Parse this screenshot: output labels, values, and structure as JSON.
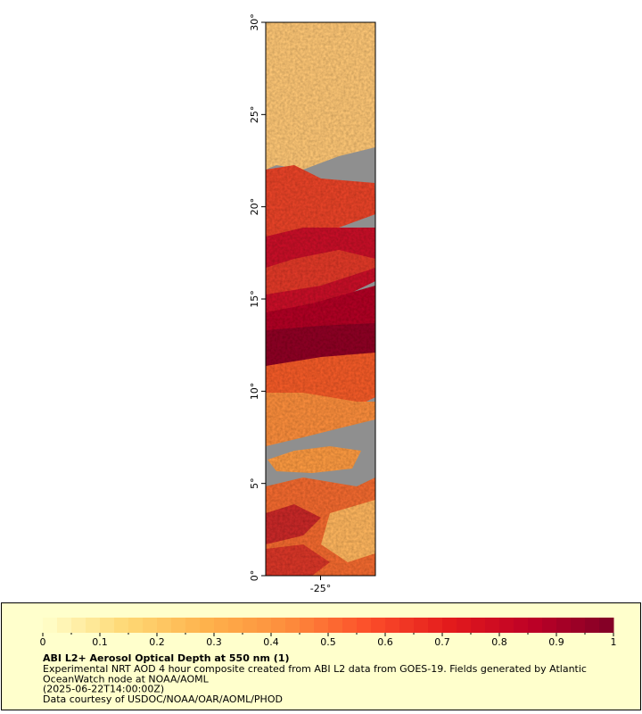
{
  "chart_data": {
    "type": "map",
    "xlim": [
      -28,
      -22
    ],
    "ylim": [
      0,
      30
    ],
    "xticks": [
      {
        "value": -25,
        "label": "-25°"
      }
    ],
    "yticks": [
      {
        "value": 0,
        "label": "0°"
      },
      {
        "value": 5,
        "label": "5°"
      },
      {
        "value": 10,
        "label": "10°"
      },
      {
        "value": 15,
        "label": "15°"
      },
      {
        "value": 20,
        "label": "20°"
      },
      {
        "value": 25,
        "label": "25°"
      },
      {
        "value": 30,
        "label": "30°"
      }
    ],
    "colorbar": {
      "range": [
        0,
        1
      ],
      "ticks": [
        0,
        0.1,
        0.2,
        0.3,
        0.4,
        0.5,
        0.6,
        0.7,
        0.8,
        0.9,
        1
      ],
      "colors": [
        "#ffffcc",
        "#fed976",
        "#feb24c",
        "#fd8d3c",
        "#fc4e2a",
        "#e31a1c",
        "#bd0026",
        "#800026"
      ]
    },
    "title": "ABI L2+ Aerosol Optical Depth at 550 nm (1)",
    "description": [
      "Experimental NRT AOD 4 hour composite created from ABI L2 data from GOES-19. Fields generated by Atlantic",
      "OceanWatch node at NOAA/AOML",
      "(2025-06-22T14:00:00Z)",
      "Data courtesy of USDOC/NOAA/OAR/AOML/PHOD"
    ]
  }
}
